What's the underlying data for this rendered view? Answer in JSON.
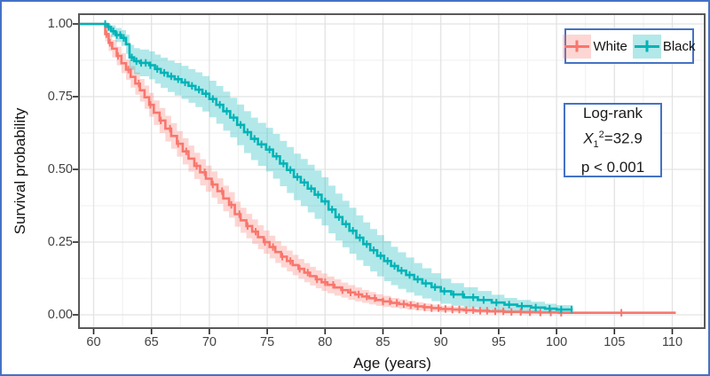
{
  "figure": {
    "border_color": "#4472C4"
  },
  "colors": {
    "accent_border": "#4472C4",
    "panel_border": "#595959",
    "grid_major": "#E3E3E3",
    "grid_minor": "#F2F2F2",
    "axis_text": "#424242",
    "title_text": "#141414"
  },
  "stats": {
    "line1": "Log-rank",
    "chi_var": "X",
    "chi_sub": "1",
    "chi_sup": "2",
    "chi_eq": "=32.9",
    "line3": "p < 0.001"
  },
  "chart_data": {
    "type": "line",
    "subtype": "kaplan-meier-survival-step-curves-with-confidence-bands",
    "title": "",
    "xlabel": "Age (years)",
    "ylabel": "Survival probability",
    "xlim": [
      58.7,
      112.8
    ],
    "ylim": [
      -0.046,
      1.034
    ],
    "x_ticks": [
      60,
      65,
      70,
      75,
      80,
      85,
      90,
      95,
      100,
      105,
      110
    ],
    "y_ticks": [
      {
        "value": 1.0,
        "label": "1.00"
      },
      {
        "value": 0.75,
        "label": "0.75"
      },
      {
        "value": 0.5,
        "label": "0.50"
      },
      {
        "value": 0.25,
        "label": "0.25"
      },
      {
        "value": 0.0,
        "label": "0.00"
      }
    ],
    "grid": "on",
    "legend_position": "top-right-inside",
    "legend_note": "censoring marks shown as plus ticks on curves",
    "series": [
      {
        "name": "White",
        "color": "#F8766D",
        "band_color": "rgba(248,118,109,0.30)",
        "end_age": 110.3,
        "band_end_age": 100.5,
        "steps": [
          [
            58.7,
            1.0,
            1.0,
            1.0
          ],
          [
            61.0,
            0.965,
            0.94,
            0.99
          ],
          [
            61.3,
            0.935,
            0.907,
            0.963
          ],
          [
            61.6,
            0.915,
            0.885,
            0.945
          ],
          [
            62.0,
            0.89,
            0.858,
            0.922
          ],
          [
            62.4,
            0.865,
            0.831,
            0.899
          ],
          [
            62.8,
            0.843,
            0.808,
            0.878
          ],
          [
            63.2,
            0.818,
            0.781,
            0.855
          ],
          [
            63.6,
            0.795,
            0.757,
            0.833
          ],
          [
            64.0,
            0.772,
            0.733,
            0.811
          ],
          [
            64.4,
            0.748,
            0.708,
            0.788
          ],
          [
            64.8,
            0.722,
            0.681,
            0.763
          ],
          [
            65.2,
            0.695,
            0.653,
            0.737
          ],
          [
            65.7,
            0.668,
            0.625,
            0.711
          ],
          [
            66.2,
            0.64,
            0.596,
            0.684
          ],
          [
            66.7,
            0.615,
            0.571,
            0.659
          ],
          [
            67.2,
            0.588,
            0.544,
            0.632
          ],
          [
            67.7,
            0.562,
            0.517,
            0.607
          ],
          [
            68.2,
            0.537,
            0.492,
            0.582
          ],
          [
            68.7,
            0.512,
            0.467,
            0.557
          ],
          [
            69.2,
            0.49,
            0.445,
            0.535
          ],
          [
            69.7,
            0.468,
            0.423,
            0.513
          ],
          [
            70.2,
            0.448,
            0.403,
            0.493
          ],
          [
            70.7,
            0.425,
            0.381,
            0.469
          ],
          [
            71.2,
            0.4,
            0.356,
            0.444
          ],
          [
            71.7,
            0.378,
            0.334,
            0.422
          ],
          [
            72.2,
            0.346,
            0.303,
            0.389
          ],
          [
            72.7,
            0.325,
            0.282,
            0.368
          ],
          [
            73.2,
            0.305,
            0.263,
            0.347
          ],
          [
            73.7,
            0.286,
            0.244,
            0.328
          ],
          [
            74.2,
            0.267,
            0.226,
            0.308
          ],
          [
            74.7,
            0.25,
            0.21,
            0.29
          ],
          [
            75.2,
            0.233,
            0.194,
            0.272
          ],
          [
            75.7,
            0.216,
            0.178,
            0.254
          ],
          [
            76.2,
            0.2,
            0.163,
            0.237
          ],
          [
            76.7,
            0.185,
            0.149,
            0.221
          ],
          [
            77.2,
            0.171,
            0.136,
            0.206
          ],
          [
            77.7,
            0.158,
            0.124,
            0.192
          ],
          [
            78.2,
            0.145,
            0.112,
            0.178
          ],
          [
            78.7,
            0.133,
            0.101,
            0.165
          ],
          [
            79.2,
            0.122,
            0.091,
            0.153
          ],
          [
            79.7,
            0.112,
            0.082,
            0.142
          ],
          [
            80.2,
            0.103,
            0.074,
            0.132
          ],
          [
            80.8,
            0.094,
            0.066,
            0.122
          ],
          [
            81.4,
            0.085,
            0.059,
            0.111
          ],
          [
            82.0,
            0.077,
            0.052,
            0.102
          ],
          [
            82.6,
            0.07,
            0.046,
            0.094
          ],
          [
            83.2,
            0.063,
            0.041,
            0.085
          ],
          [
            83.8,
            0.057,
            0.036,
            0.078
          ],
          [
            84.4,
            0.051,
            0.031,
            0.071
          ],
          [
            85.0,
            0.046,
            0.027,
            0.065
          ],
          [
            85.7,
            0.041,
            0.024,
            0.058
          ],
          [
            86.4,
            0.037,
            0.021,
            0.053
          ],
          [
            87.1,
            0.033,
            0.018,
            0.048
          ],
          [
            87.8,
            0.029,
            0.015,
            0.043
          ],
          [
            88.5,
            0.026,
            0.013,
            0.039
          ],
          [
            89.2,
            0.023,
            0.011,
            0.035
          ],
          [
            90.0,
            0.02,
            0.009,
            0.031
          ],
          [
            91.0,
            0.018,
            0.008,
            0.028
          ],
          [
            92.0,
            0.016,
            0.007,
            0.025
          ],
          [
            93.0,
            0.014,
            0.006,
            0.022
          ],
          [
            94.2,
            0.012,
            0.005,
            0.019
          ],
          [
            95.5,
            0.01,
            0.004,
            0.016
          ],
          [
            97.0,
            0.009,
            0.003,
            0.015
          ],
          [
            98.5,
            0.008,
            0.003,
            0.013
          ],
          [
            100.2,
            0.007,
            0.002,
            0.012
          ]
        ],
        "censor_ages": [
          61.1,
          61.4,
          62.1,
          63.0,
          63.9,
          64.9,
          65.8,
          66.6,
          67.3,
          68.0,
          68.9,
          69.6,
          70.3,
          71.1,
          71.9,
          72.6,
          73.3,
          74.0,
          74.8,
          75.5,
          76.3,
          77.0,
          77.8,
          78.5,
          79.3,
          80.0,
          80.7,
          81.5,
          82.2,
          82.9,
          83.6,
          84.3,
          85.0,
          85.6,
          86.2,
          86.8,
          87.4,
          88.0,
          88.6,
          89.2,
          89.8,
          90.4,
          91.0,
          91.6,
          92.2,
          92.8,
          93.4,
          94.0,
          94.7,
          95.4,
          96.1,
          96.9,
          97.7,
          98.6,
          99.5,
          100.4,
          105.6
        ]
      },
      {
        "name": "Black",
        "color": "#00B3B7",
        "band_color": "rgba(0,179,183,0.30)",
        "end_age": 101.4,
        "band_end_age": 101.4,
        "steps": [
          [
            58.7,
            1.0,
            1.0,
            1.0
          ],
          [
            61.2,
            0.99,
            0.975,
            1.0
          ],
          [
            61.5,
            0.975,
            0.955,
            0.995
          ],
          [
            61.9,
            0.962,
            0.938,
            0.986
          ],
          [
            62.4,
            0.952,
            0.925,
            0.979
          ],
          [
            62.8,
            0.93,
            0.897,
            0.963
          ],
          [
            63.1,
            0.885,
            0.842,
            0.928
          ],
          [
            63.5,
            0.872,
            0.827,
            0.917
          ],
          [
            64.0,
            0.866,
            0.82,
            0.912
          ],
          [
            64.8,
            0.858,
            0.81,
            0.906
          ],
          [
            65.3,
            0.845,
            0.795,
            0.895
          ],
          [
            65.8,
            0.832,
            0.78,
            0.884
          ],
          [
            66.4,
            0.82,
            0.766,
            0.874
          ],
          [
            67.0,
            0.81,
            0.754,
            0.866
          ],
          [
            67.6,
            0.799,
            0.742,
            0.856
          ],
          [
            68.2,
            0.787,
            0.729,
            0.845
          ],
          [
            68.8,
            0.774,
            0.714,
            0.834
          ],
          [
            69.4,
            0.76,
            0.699,
            0.821
          ],
          [
            70.0,
            0.742,
            0.679,
            0.805
          ],
          [
            70.6,
            0.722,
            0.657,
            0.787
          ],
          [
            71.2,
            0.7,
            0.633,
            0.767
          ],
          [
            71.8,
            0.678,
            0.61,
            0.746
          ],
          [
            72.4,
            0.653,
            0.583,
            0.723
          ],
          [
            73.0,
            0.628,
            0.556,
            0.7
          ],
          [
            73.6,
            0.605,
            0.532,
            0.678
          ],
          [
            74.2,
            0.586,
            0.512,
            0.66
          ],
          [
            74.9,
            0.568,
            0.493,
            0.643
          ],
          [
            75.5,
            0.545,
            0.468,
            0.622
          ],
          [
            76.1,
            0.52,
            0.442,
            0.598
          ],
          [
            76.7,
            0.498,
            0.419,
            0.577
          ],
          [
            77.3,
            0.474,
            0.394,
            0.554
          ],
          [
            77.9,
            0.455,
            0.374,
            0.536
          ],
          [
            78.5,
            0.434,
            0.352,
            0.516
          ],
          [
            79.1,
            0.413,
            0.33,
            0.496
          ],
          [
            79.7,
            0.39,
            0.307,
            0.473
          ],
          [
            80.3,
            0.362,
            0.28,
            0.444
          ],
          [
            80.9,
            0.336,
            0.255,
            0.417
          ],
          [
            81.5,
            0.312,
            0.232,
            0.392
          ],
          [
            82.1,
            0.289,
            0.21,
            0.368
          ],
          [
            82.7,
            0.265,
            0.188,
            0.342
          ],
          [
            83.3,
            0.243,
            0.168,
            0.318
          ],
          [
            83.9,
            0.222,
            0.149,
            0.295
          ],
          [
            84.5,
            0.203,
            0.132,
            0.274
          ],
          [
            85.1,
            0.185,
            0.116,
            0.254
          ],
          [
            85.7,
            0.168,
            0.102,
            0.234
          ],
          [
            86.3,
            0.152,
            0.089,
            0.215
          ],
          [
            87.0,
            0.137,
            0.077,
            0.197
          ],
          [
            87.7,
            0.122,
            0.066,
            0.178
          ],
          [
            88.4,
            0.108,
            0.056,
            0.16
          ],
          [
            89.2,
            0.095,
            0.047,
            0.143
          ],
          [
            90.0,
            0.081,
            0.038,
            0.124
          ],
          [
            90.9,
            0.07,
            0.031,
            0.109
          ],
          [
            92.0,
            0.06,
            0.025,
            0.095
          ],
          [
            93.2,
            0.051,
            0.02,
            0.082
          ],
          [
            94.4,
            0.042,
            0.015,
            0.069
          ],
          [
            95.5,
            0.035,
            0.012,
            0.058
          ],
          [
            96.6,
            0.03,
            0.009,
            0.051
          ],
          [
            97.8,
            0.025,
            0.007,
            0.045
          ],
          [
            99.0,
            0.021,
            0.006,
            0.038
          ],
          [
            100.0,
            0.018,
            0.005,
            0.033
          ]
        ],
        "censor_ages": [
          61.0,
          61.3,
          61.7,
          62.0,
          62.3,
          62.6,
          63.3,
          63.7,
          64.1,
          64.5,
          64.9,
          65.5,
          66.1,
          66.7,
          67.3,
          67.9,
          68.5,
          69.1,
          69.7,
          70.3,
          70.9,
          71.5,
          72.1,
          72.7,
          73.3,
          73.9,
          74.5,
          75.2,
          75.8,
          76.4,
          77.0,
          77.6,
          78.2,
          78.8,
          79.4,
          80.0,
          80.6,
          81.2,
          81.8,
          82.4,
          83.0,
          83.6,
          84.2,
          84.8,
          85.4,
          86.0,
          86.6,
          87.3,
          88.0,
          88.7,
          89.5,
          90.3,
          91.1,
          91.9,
          92.8,
          93.7,
          94.8,
          95.9,
          97.0,
          98.2,
          99.4,
          100.4,
          101.3
        ]
      }
    ]
  }
}
